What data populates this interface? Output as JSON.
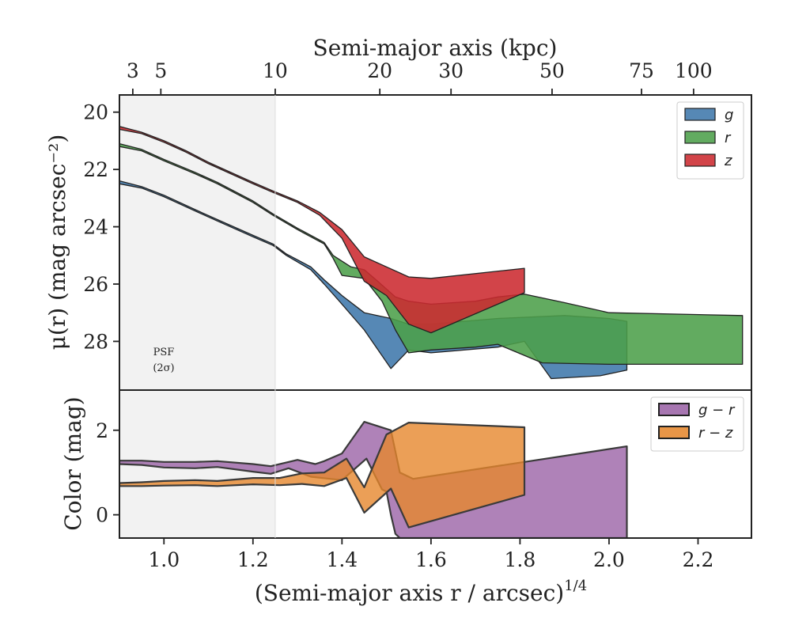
{
  "colors": {
    "g": "#3f77ab",
    "r": "#4c9f4a",
    "z": "#cc2a30",
    "g_r": "#9b63a6",
    "r_z": "#e6872d",
    "psf_shade": "#f2f2f2"
  },
  "psf_label": {
    "line1": "PSF",
    "line2": "(2σ)"
  },
  "chart_data": [
    {
      "type": "area",
      "name": "surface-brightness-profile",
      "ylabel": "μ(r) (mag arcsec⁻²)",
      "top_axis_title": "Semi-major axis (kpc)",
      "top_ticks": [
        {
          "label": "3",
          "x": 0.93
        },
        {
          "label": "5",
          "x": 0.993
        },
        {
          "label": "10",
          "x": 1.25
        },
        {
          "label": "20",
          "x": 1.485
        },
        {
          "label": "30",
          "x": 1.645
        },
        {
          "label": "50",
          "x": 1.872
        },
        {
          "label": "75",
          "x": 2.073
        },
        {
          "label": "100",
          "x": 2.19
        }
      ],
      "xlim": [
        0.9,
        2.32
      ],
      "ylim": [
        29.7,
        19.4
      ],
      "yticks": [
        20,
        22,
        24,
        26,
        28
      ],
      "legend": [
        "g",
        "r",
        "z"
      ],
      "legend_position": "top-right",
      "psf_shade_xmax": 1.25,
      "series": [
        {
          "name": "g",
          "upper": [
            [
              0.9,
              22.4
            ],
            [
              0.95,
              22.6
            ],
            [
              1.0,
              22.9
            ],
            [
              1.07,
              23.4
            ],
            [
              1.12,
              23.75
            ],
            [
              1.2,
              24.3
            ],
            [
              1.245,
              24.6
            ],
            [
              1.275,
              24.95
            ],
            [
              1.33,
              25.4
            ],
            [
              1.36,
              25.85
            ],
            [
              1.4,
              26.4
            ],
            [
              1.45,
              27.0
            ],
            [
              1.51,
              27.2
            ],
            [
              1.55,
              27.4
            ],
            [
              1.6,
              27.4
            ],
            [
              1.75,
              27.2
            ],
            [
              1.9,
              27.1
            ],
            [
              2.0,
              27.2
            ],
            [
              2.04,
              27.3
            ]
          ],
          "lower": [
            [
              0.9,
              22.5
            ],
            [
              0.95,
              22.65
            ],
            [
              1.0,
              22.95
            ],
            [
              1.07,
              23.45
            ],
            [
              1.12,
              23.8
            ],
            [
              1.2,
              24.35
            ],
            [
              1.245,
              24.65
            ],
            [
              1.275,
              25.0
            ],
            [
              1.33,
              25.5
            ],
            [
              1.36,
              26.0
            ],
            [
              1.4,
              26.7
            ],
            [
              1.45,
              27.6
            ],
            [
              1.51,
              28.95
            ],
            [
              1.55,
              28.3
            ],
            [
              1.6,
              28.4
            ],
            [
              1.75,
              28.2
            ],
            [
              1.81,
              28.0
            ],
            [
              1.87,
              29.3
            ],
            [
              1.98,
              29.2
            ],
            [
              2.04,
              29.0
            ]
          ]
        },
        {
          "name": "r",
          "upper": [
            [
              0.9,
              21.1
            ],
            [
              0.95,
              21.3
            ],
            [
              1.0,
              21.65
            ],
            [
              1.07,
              22.1
            ],
            [
              1.12,
              22.45
            ],
            [
              1.2,
              23.1
            ],
            [
              1.245,
              23.55
            ],
            [
              1.3,
              24.05
            ],
            [
              1.36,
              24.55
            ],
            [
              1.38,
              25.0
            ],
            [
              1.42,
              25.4
            ],
            [
              1.45,
              25.5
            ],
            [
              1.48,
              25.9
            ],
            [
              1.52,
              26.45
            ],
            [
              1.55,
              26.6
            ],
            [
              1.6,
              26.7
            ],
            [
              1.7,
              26.6
            ],
            [
              1.75,
              26.45
            ],
            [
              1.81,
              26.35
            ],
            [
              1.9,
              26.65
            ],
            [
              2.0,
              27.0
            ],
            [
              2.3,
              27.1
            ]
          ],
          "lower": [
            [
              0.9,
              21.2
            ],
            [
              0.95,
              21.35
            ],
            [
              1.0,
              21.7
            ],
            [
              1.07,
              22.15
            ],
            [
              1.12,
              22.5
            ],
            [
              1.2,
              23.15
            ],
            [
              1.245,
              23.6
            ],
            [
              1.3,
              24.1
            ],
            [
              1.36,
              24.6
            ],
            [
              1.38,
              25.1
            ],
            [
              1.4,
              25.7
            ],
            [
              1.45,
              25.8
            ],
            [
              1.49,
              26.6
            ],
            [
              1.52,
              27.6
            ],
            [
              1.55,
              28.4
            ],
            [
              1.6,
              28.3
            ],
            [
              1.7,
              28.2
            ],
            [
              1.75,
              28.1
            ],
            [
              1.85,
              28.75
            ],
            [
              2.0,
              28.8
            ],
            [
              2.3,
              28.8
            ]
          ]
        },
        {
          "name": "z",
          "upper": [
            [
              0.9,
              20.5
            ],
            [
              0.95,
              20.7
            ],
            [
              1.0,
              21.0
            ],
            [
              1.05,
              21.35
            ],
            [
              1.1,
              21.75
            ],
            [
              1.2,
              22.45
            ],
            [
              1.245,
              22.75
            ],
            [
              1.3,
              23.1
            ],
            [
              1.35,
              23.5
            ],
            [
              1.4,
              24.1
            ],
            [
              1.45,
              25.05
            ],
            [
              1.5,
              25.4
            ],
            [
              1.55,
              25.75
            ],
            [
              1.6,
              25.8
            ],
            [
              1.81,
              25.45
            ]
          ],
          "lower": [
            [
              0.9,
              20.6
            ],
            [
              0.95,
              20.75
            ],
            [
              1.0,
              21.05
            ],
            [
              1.05,
              21.4
            ],
            [
              1.1,
              21.8
            ],
            [
              1.2,
              22.5
            ],
            [
              1.245,
              22.8
            ],
            [
              1.3,
              23.15
            ],
            [
              1.35,
              23.6
            ],
            [
              1.4,
              24.4
            ],
            [
              1.45,
              25.9
            ],
            [
              1.5,
              26.4
            ],
            [
              1.55,
              27.4
            ],
            [
              1.6,
              27.7
            ],
            [
              1.81,
              26.3
            ]
          ]
        }
      ]
    },
    {
      "type": "area",
      "name": "color-profile",
      "ylabel": "Color (mag)",
      "xlabel": "(Semi-major axis r / arcsec)",
      "xlabel_sup": "1/4",
      "xlim": [
        0.9,
        2.32
      ],
      "ylim": [
        -0.55,
        2.95
      ],
      "xticks": [
        1.0,
        1.2,
        1.4,
        1.6,
        1.8,
        2.0,
        2.2
      ],
      "xtick_labels": [
        "1.0",
        "1.2",
        "1.4",
        "1.6",
        "1.8",
        "2.0",
        "2.2"
      ],
      "yticks": [
        0,
        2
      ],
      "legend": [
        "g − r",
        "r − z"
      ],
      "legend_position": "top-right",
      "psf_shade_xmax": 1.25,
      "series": [
        {
          "name": "g − r",
          "upper": [
            [
              0.9,
              1.28
            ],
            [
              0.95,
              1.28
            ],
            [
              1.0,
              1.25
            ],
            [
              1.07,
              1.25
            ],
            [
              1.12,
              1.27
            ],
            [
              1.2,
              1.2
            ],
            [
              1.24,
              1.15
            ],
            [
              1.3,
              1.3
            ],
            [
              1.34,
              1.2
            ],
            [
              1.36,
              1.27
            ],
            [
              1.4,
              1.45
            ],
            [
              1.45,
              2.2
            ],
            [
              1.51,
              2.0
            ],
            [
              1.53,
              1.0
            ],
            [
              1.56,
              0.85
            ],
            [
              2.04,
              1.62
            ]
          ],
          "lower": [
            [
              0.9,
              1.2
            ],
            [
              0.95,
              1.18
            ],
            [
              1.0,
              1.12
            ],
            [
              1.07,
              1.1
            ],
            [
              1.12,
              1.13
            ],
            [
              1.2,
              1.02
            ],
            [
              1.24,
              0.97
            ],
            [
              1.28,
              1.1
            ],
            [
              1.33,
              0.9
            ],
            [
              1.4,
              0.82
            ],
            [
              1.455,
              1.33
            ],
            [
              1.49,
              0.6
            ],
            [
              1.5,
              0.55
            ],
            [
              1.51,
              0.0
            ],
            [
              1.52,
              -0.45
            ],
            [
              1.53,
              -0.55
            ],
            [
              2.04,
              -0.55
            ]
          ]
        },
        {
          "name": "r − z",
          "upper": [
            [
              0.9,
              0.75
            ],
            [
              0.95,
              0.77
            ],
            [
              1.0,
              0.8
            ],
            [
              1.07,
              0.82
            ],
            [
              1.12,
              0.8
            ],
            [
              1.2,
              0.87
            ],
            [
              1.26,
              0.87
            ],
            [
              1.31,
              0.98
            ],
            [
              1.36,
              1.0
            ],
            [
              1.41,
              1.33
            ],
            [
              1.45,
              0.65
            ],
            [
              1.5,
              1.9
            ],
            [
              1.55,
              2.18
            ],
            [
              1.81,
              2.07
            ]
          ],
          "lower": [
            [
              0.9,
              0.68
            ],
            [
              0.95,
              0.68
            ],
            [
              1.0,
              0.69
            ],
            [
              1.07,
              0.7
            ],
            [
              1.12,
              0.68
            ],
            [
              1.2,
              0.72
            ],
            [
              1.26,
              0.7
            ],
            [
              1.31,
              0.73
            ],
            [
              1.36,
              0.68
            ],
            [
              1.41,
              0.87
            ],
            [
              1.45,
              0.05
            ],
            [
              1.51,
              0.62
            ],
            [
              1.55,
              -0.3
            ],
            [
              1.81,
              0.47
            ]
          ]
        }
      ]
    }
  ]
}
